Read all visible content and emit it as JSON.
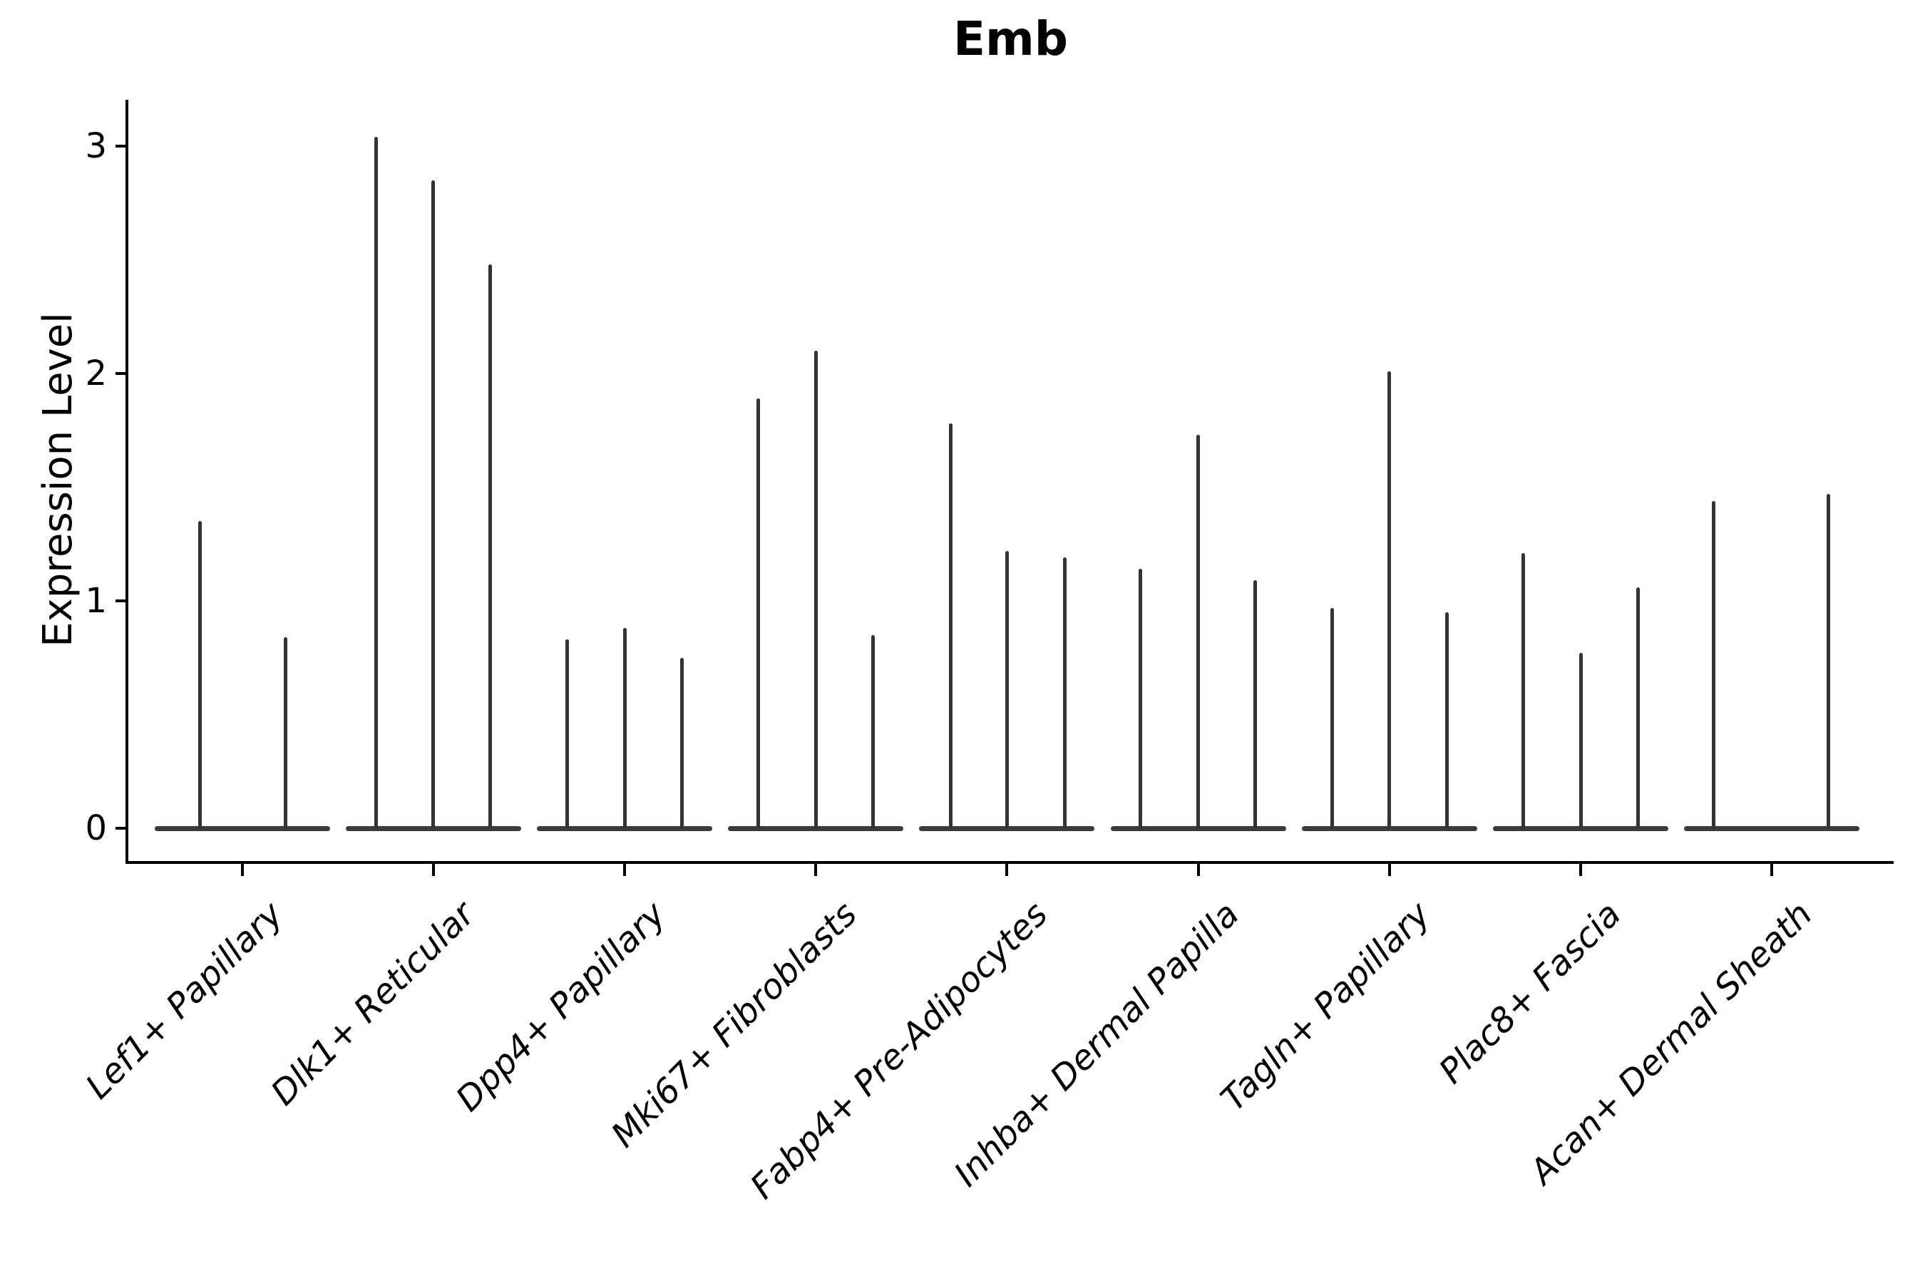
{
  "title": "Emb",
  "y_axis": {
    "label": "Expression Level",
    "ticks": [
      "0",
      "1",
      "2",
      "3"
    ]
  },
  "chart_data": {
    "type": "violin",
    "title": "Emb",
    "xlabel": "",
    "ylabel": "Expression Level",
    "ylim": [
      0,
      3.2
    ],
    "yticks": [
      0,
      1,
      2,
      3
    ],
    "legend": "none",
    "grid": false,
    "note": "Collapsed (near-zero-width) violins: flat body at 0 with thin spikes; spike value = max expression per violin",
    "categories": [
      "Lef1+ Papillary",
      "Dlk1+ Reticular",
      "Dpp4+ Papillary",
      "Mki67+ Fibroblasts",
      "Fabp4+ Pre-Adipocytes",
      "Inhba+ Dermal Papilla",
      "Tagln+ Papillary",
      "Plac8+ Fascia",
      "Acan+ Dermal Sheath"
    ],
    "groups": [
      {
        "label": "Lef1+ Papillary",
        "spikes": [
          {
            "offset": -60,
            "value": 1.35
          },
          {
            "offset": 60,
            "value": 0.84
          }
        ]
      },
      {
        "label": "Dlk1+ Reticular",
        "spikes": [
          {
            "offset": -81,
            "value": 3.04
          },
          {
            "offset": -1,
            "value": 2.85
          },
          {
            "offset": 79,
            "value": 2.48
          }
        ]
      },
      {
        "label": "Dpp4+ Papillary",
        "spikes": [
          {
            "offset": -81,
            "value": 0.83
          },
          {
            "offset": 0,
            "value": 0.88
          },
          {
            "offset": 80,
            "value": 0.75
          }
        ]
      },
      {
        "label": "Mki67+ Fibroblasts",
        "spikes": [
          {
            "offset": -81,
            "value": 1.89
          },
          {
            "offset": 0,
            "value": 2.1
          },
          {
            "offset": 80,
            "value": 0.85
          }
        ]
      },
      {
        "label": "Fabp4+ Pre-Adipocytes",
        "spikes": [
          {
            "offset": -79,
            "value": 1.78
          },
          {
            "offset": 0,
            "value": 1.22
          },
          {
            "offset": 81,
            "value": 1.19
          }
        ]
      },
      {
        "label": "Inhba+ Dermal Papilla",
        "spikes": [
          {
            "offset": -81,
            "value": 1.14
          },
          {
            "offset": 0,
            "value": 1.73
          },
          {
            "offset": 80,
            "value": 1.09
          }
        ]
      },
      {
        "label": "Tagln+ Papillary",
        "spikes": [
          {
            "offset": -80,
            "value": 0.97
          },
          {
            "offset": 0,
            "value": 2.01
          },
          {
            "offset": 81,
            "value": 0.95
          }
        ]
      },
      {
        "label": "Plac8+ Fascia",
        "spikes": [
          {
            "offset": -80,
            "value": 1.21
          },
          {
            "offset": 1,
            "value": 0.77
          },
          {
            "offset": 81,
            "value": 1.06
          }
        ]
      },
      {
        "label": "Acan+ Dermal Sheath",
        "spikes": [
          {
            "offset": -81,
            "value": 1.44
          },
          {
            "offset": 80,
            "value": 1.47
          }
        ]
      }
    ]
  },
  "colors": {
    "spike": "#333333",
    "baseline_body": "#3a3a3a",
    "axis": "#000000",
    "background": "#ffffff"
  }
}
